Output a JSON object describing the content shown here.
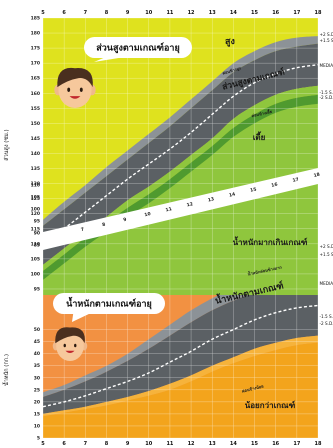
{
  "chart_data": [
    {
      "type": "area",
      "x": [
        5,
        6,
        7,
        8,
        9,
        10,
        11,
        12,
        13,
        14,
        15,
        16,
        17,
        18
      ],
      "ylim": [
        93,
        185
      ],
      "ylabel": "ส่วนสูง (ซม.)",
      "callout": "ส่วนสูงตามเกณฑ์อายุ",
      "series": [
        {
          "name": "+2 S.D.",
          "values": [
            118,
            124,
            129.5,
            135.5,
            141,
            146.5,
            152,
            158,
            164,
            170,
            174,
            177,
            178.5,
            179
          ]
        },
        {
          "name": "+1.5 S.D.",
          "values": [
            116,
            121.5,
            127,
            132.5,
            138,
            143.5,
            149,
            155,
            161,
            167,
            171,
            174,
            175.5,
            176.5
          ]
        },
        {
          "name": "MEDIAN",
          "values": [
            109.5,
            115,
            120.5,
            126,
            131.5,
            136.5,
            141.5,
            147,
            153,
            159,
            163.5,
            166.5,
            168.5,
            169.5
          ]
        },
        {
          "name": "-1.5 S.D.",
          "values": [
            103,
            108.5,
            114,
            119,
            124.5,
            129,
            134,
            139.5,
            145,
            151.5,
            156,
            159.5,
            161.5,
            162.5
          ]
        },
        {
          "name": "-2 S.D.",
          "values": [
            101,
            106.5,
            112,
            117,
            122,
            126.5,
            131.5,
            137,
            142.5,
            148.5,
            153,
            156.5,
            158.5,
            159.5
          ]
        }
      ],
      "zones": [
        {
          "name": "สูง"
        },
        {
          "name": "ค่อนข้างสูง"
        },
        {
          "name": "ส่วนสูงตามเกณฑ์"
        },
        {
          "name": "ค่อนข้างเตี้ย"
        },
        {
          "name": "เตี้ย"
        }
      ]
    },
    {
      "type": "area",
      "x": [
        5,
        6,
        7,
        8,
        9,
        10,
        11,
        12,
        13,
        14,
        15,
        16,
        17,
        18
      ],
      "ylim": [
        5,
        110
      ],
      "ylabel": "น้ำหนัก (กก.)",
      "callout": "น้ำหนักตามเกณฑ์อายุ",
      "series": [
        {
          "name": "+2 S.D.",
          "values": [
            24,
            27,
            31,
            35,
            40,
            46,
            52,
            58,
            63,
            67,
            70,
            72,
            73,
            74
          ]
        },
        {
          "name": "+1.5 S.D.",
          "values": [
            22,
            25,
            28.5,
            32.5,
            37,
            42,
            47.5,
            53,
            58,
            62,
            65,
            67,
            68,
            69
          ]
        },
        {
          "name": "MEDIAN",
          "values": [
            18,
            20,
            22.5,
            25.5,
            28.5,
            32,
            36.5,
            41,
            46,
            50,
            54,
            57,
            59,
            60
          ]
        },
        {
          "name": "-1.5 S.D.",
          "values": [
            15,
            16.5,
            18,
            20,
            22,
            24.5,
            27.5,
            31,
            35,
            38.5,
            42,
            44.5,
            46.5,
            47.5
          ]
        },
        {
          "name": "-2 S.D.",
          "values": [
            14,
            15.5,
            17,
            18.5,
            20.5,
            22.5,
            25,
            28.5,
            32.5,
            36,
            39,
            41.5,
            43.5,
            44.5
          ]
        }
      ],
      "zones": [
        {
          "name": "น้ำหนักมากเกินเกณฑ์"
        },
        {
          "name": "น้ำหนักค่อนข้างมาก"
        },
        {
          "name": "น้ำหนักตามเกณฑ์"
        },
        {
          "name": "ค่อนข้างน้อย"
        },
        {
          "name": "น้อยกว่าเกณฑ์"
        }
      ]
    }
  ],
  "height_ticks": [
    185,
    180,
    175,
    170,
    165,
    160,
    155,
    150,
    145,
    140,
    135,
    130,
    125,
    120,
    115,
    110,
    105,
    100,
    95
  ],
  "weight_ticks": [
    50,
    45,
    40,
    35,
    30,
    25,
    20,
    15,
    10,
    5
  ],
  "x_ticks": [
    5,
    6,
    7,
    8,
    9,
    10,
    11,
    12,
    13,
    14,
    15,
    16,
    17,
    18
  ],
  "diagonal_ticks": [
    5,
    6,
    7,
    8,
    9,
    10,
    11,
    12,
    13,
    14,
    15,
    16,
    17,
    18
  ],
  "sd_labels": [
    "+2 S.D.",
    "+1.5 S.D.",
    "MEDIAN",
    "-1.5 S.D.",
    "-2 S.D."
  ],
  "colors": {
    "height_bg": "#dfe21e",
    "height_band_mid": "#8c9297",
    "height_band_dark": "#5b6064",
    "height_low": "#8fc63d",
    "height_low_dark": "#4f9a2f",
    "weight_bg": "#f29142",
    "weight_band_mid": "#8c9297",
    "weight_band_dark": "#5b6064",
    "weight_low": "#f6b33b",
    "weight_low_dark": "#f3a41c",
    "grid": "#ffffff",
    "median": "#ffffff"
  }
}
